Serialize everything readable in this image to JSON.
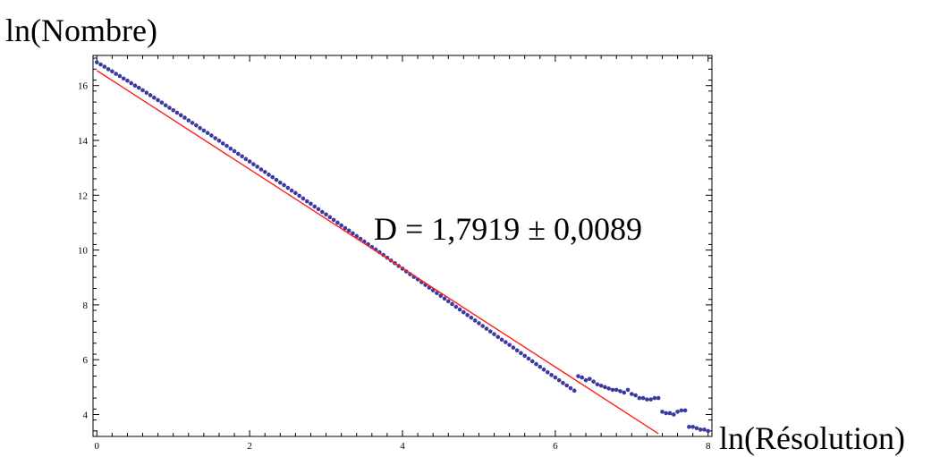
{
  "chart_data": {
    "type": "scatter",
    "title": "",
    "xlabel": "ln(Résolution)",
    "ylabel": "ln(Nombre)",
    "xlim": [
      -0.05,
      8.05
    ],
    "ylim": [
      3.2,
      17.1
    ],
    "x_ticks": [
      0,
      2,
      4,
      6,
      8
    ],
    "y_ticks": [
      4,
      6,
      8,
      10,
      12,
      14,
      16
    ],
    "grid": false,
    "legend": "none",
    "annotation": "D = 1,7919 ± 0,0089",
    "colors": {
      "points": "#3a3aa0",
      "fit_line": "#ff2020",
      "axes": "#000000"
    },
    "series": [
      {
        "kind": "points",
        "x": [
          0.0,
          0.05,
          0.1,
          0.15,
          0.2,
          0.25,
          0.3,
          0.35,
          0.4,
          0.45,
          0.5,
          0.55,
          0.6,
          0.65,
          0.7,
          0.75,
          0.8,
          0.85,
          0.9,
          0.95,
          1.0,
          1.05,
          1.1,
          1.15,
          1.2,
          1.25,
          1.3,
          1.35,
          1.4,
          1.45,
          1.5,
          1.55,
          1.6,
          1.65,
          1.7,
          1.75,
          1.8,
          1.85,
          1.9,
          1.95,
          2.0,
          2.05,
          2.1,
          2.15,
          2.2,
          2.25,
          2.3,
          2.35,
          2.4,
          2.45,
          2.5,
          2.55,
          2.6,
          2.65,
          2.7,
          2.75,
          2.8,
          2.85,
          2.9,
          2.95,
          3.0,
          3.05,
          3.1,
          3.15,
          3.2,
          3.25,
          3.3,
          3.35,
          3.4,
          3.45,
          3.5,
          3.55,
          3.6,
          3.65,
          3.7,
          3.75,
          3.8,
          3.85,
          3.9,
          3.95,
          4.0,
          4.05,
          4.1,
          4.15,
          4.2,
          4.25,
          4.3,
          4.35,
          4.4,
          4.45,
          4.5,
          4.55,
          4.6,
          4.65,
          4.7,
          4.75,
          4.8,
          4.85,
          4.9,
          4.95,
          5.0,
          5.05,
          5.1,
          5.15,
          5.2,
          5.25,
          5.3,
          5.35,
          5.4,
          5.45,
          5.5,
          5.55,
          5.6,
          5.65,
          5.7,
          5.75,
          5.8,
          5.85,
          5.9,
          5.95,
          6.0,
          6.05,
          6.1,
          6.15,
          6.2,
          6.25,
          6.3,
          6.35,
          6.4,
          6.45,
          6.5,
          6.55,
          6.6,
          6.65,
          6.7,
          6.75,
          6.8,
          6.85,
          6.9,
          6.95,
          7.0,
          7.05,
          7.1,
          7.15,
          7.2,
          7.25,
          7.3,
          7.35,
          7.4,
          7.45,
          7.5,
          7.55,
          7.6,
          7.65,
          7.7,
          7.75,
          7.8,
          7.85,
          7.9,
          7.95,
          8.0
        ],
        "y": [
          16.85,
          16.77,
          16.69,
          16.6,
          16.52,
          16.43,
          16.35,
          16.26,
          16.18,
          16.09,
          16.0,
          15.92,
          15.83,
          15.74,
          15.65,
          15.56,
          15.47,
          15.38,
          15.28,
          15.19,
          15.1,
          15.01,
          14.92,
          14.83,
          14.73,
          14.64,
          14.55,
          14.45,
          14.36,
          14.27,
          14.18,
          14.08,
          13.99,
          13.89,
          13.8,
          13.7,
          13.61,
          13.51,
          13.42,
          13.32,
          13.23,
          13.13,
          13.04,
          12.94,
          12.85,
          12.75,
          12.66,
          12.56,
          12.46,
          12.37,
          12.27,
          12.17,
          12.08,
          11.98,
          11.88,
          11.78,
          11.69,
          11.59,
          11.49,
          11.39,
          11.3,
          11.2,
          11.1,
          11.0,
          10.9,
          10.8,
          10.71,
          10.61,
          10.51,
          10.41,
          10.31,
          10.21,
          10.11,
          10.02,
          9.92,
          9.82,
          9.72,
          9.62,
          9.52,
          9.42,
          9.32,
          9.22,
          9.12,
          9.02,
          8.93,
          8.83,
          8.73,
          8.63,
          8.53,
          8.43,
          8.33,
          8.23,
          8.13,
          8.03,
          7.93,
          7.83,
          7.73,
          7.63,
          7.53,
          7.43,
          7.33,
          7.23,
          7.13,
          7.03,
          6.93,
          6.83,
          6.73,
          6.64,
          6.54,
          6.44,
          6.34,
          6.24,
          6.14,
          6.04,
          5.94,
          5.84,
          5.74,
          5.64,
          5.54,
          5.44,
          5.35,
          5.25,
          5.15,
          5.06,
          4.96,
          4.87,
          5.4,
          5.35,
          5.25,
          5.3,
          5.2,
          5.1,
          5.05,
          5.0,
          4.95,
          4.9,
          4.9,
          4.85,
          4.8,
          4.9,
          4.75,
          4.7,
          4.6,
          4.6,
          4.55,
          4.55,
          4.6,
          4.6,
          4.1,
          4.05,
          4.05,
          4.0,
          4.1,
          4.15,
          4.15,
          3.55,
          3.55,
          3.5,
          3.45,
          3.45,
          3.4
        ]
      },
      {
        "kind": "fit_line",
        "x": [
          0,
          7.35
        ],
        "y": [
          16.55,
          3.3
        ]
      }
    ]
  }
}
